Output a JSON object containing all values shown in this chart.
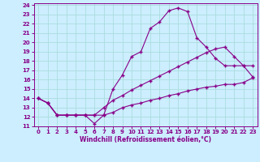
{
  "xlabel": "Windchill (Refroidissement éolien,°C)",
  "xlim": [
    -0.5,
    23.5
  ],
  "ylim": [
    11,
    24.2
  ],
  "xticks": [
    0,
    1,
    2,
    3,
    4,
    5,
    6,
    7,
    8,
    9,
    10,
    11,
    12,
    13,
    14,
    15,
    16,
    17,
    18,
    19,
    20,
    21,
    22,
    23
  ],
  "yticks": [
    11,
    12,
    13,
    14,
    15,
    16,
    17,
    18,
    19,
    20,
    21,
    22,
    23,
    24
  ],
  "line_color": "#880088",
  "background_color": "#cceeff",
  "grid_color": "#aadddd",
  "line1_x": [
    0,
    1,
    2,
    3,
    4,
    5,
    6,
    7,
    8,
    9,
    10,
    11,
    12,
    13,
    14,
    15,
    16,
    17,
    18,
    19,
    20,
    21,
    22,
    23
  ],
  "line1_y": [
    14.0,
    13.5,
    12.2,
    12.2,
    12.2,
    12.2,
    11.3,
    12.2,
    15.0,
    16.5,
    18.5,
    19.0,
    21.5,
    22.2,
    23.4,
    23.7,
    23.3,
    20.5,
    19.5,
    18.3,
    17.5,
    17.5,
    17.5,
    17.5
  ],
  "line2_x": [
    0,
    1,
    2,
    3,
    4,
    5,
    6,
    7,
    8,
    9,
    10,
    11,
    12,
    13,
    14,
    15,
    16,
    17,
    18,
    19,
    20,
    21,
    22,
    23
  ],
  "line2_y": [
    14.0,
    13.5,
    12.2,
    12.2,
    12.2,
    12.2,
    12.2,
    13.0,
    13.8,
    14.3,
    14.9,
    15.4,
    15.9,
    16.4,
    16.9,
    17.4,
    17.9,
    18.4,
    18.9,
    19.3,
    19.5,
    18.5,
    17.5,
    16.3
  ],
  "line3_x": [
    0,
    1,
    2,
    3,
    4,
    5,
    6,
    7,
    8,
    9,
    10,
    11,
    12,
    13,
    14,
    15,
    16,
    17,
    18,
    19,
    20,
    21,
    22,
    23
  ],
  "line3_y": [
    14.0,
    13.5,
    12.2,
    12.2,
    12.2,
    12.2,
    12.2,
    12.2,
    12.5,
    13.0,
    13.3,
    13.5,
    13.8,
    14.0,
    14.3,
    14.5,
    14.8,
    15.0,
    15.2,
    15.3,
    15.5,
    15.5,
    15.7,
    16.2
  ]
}
